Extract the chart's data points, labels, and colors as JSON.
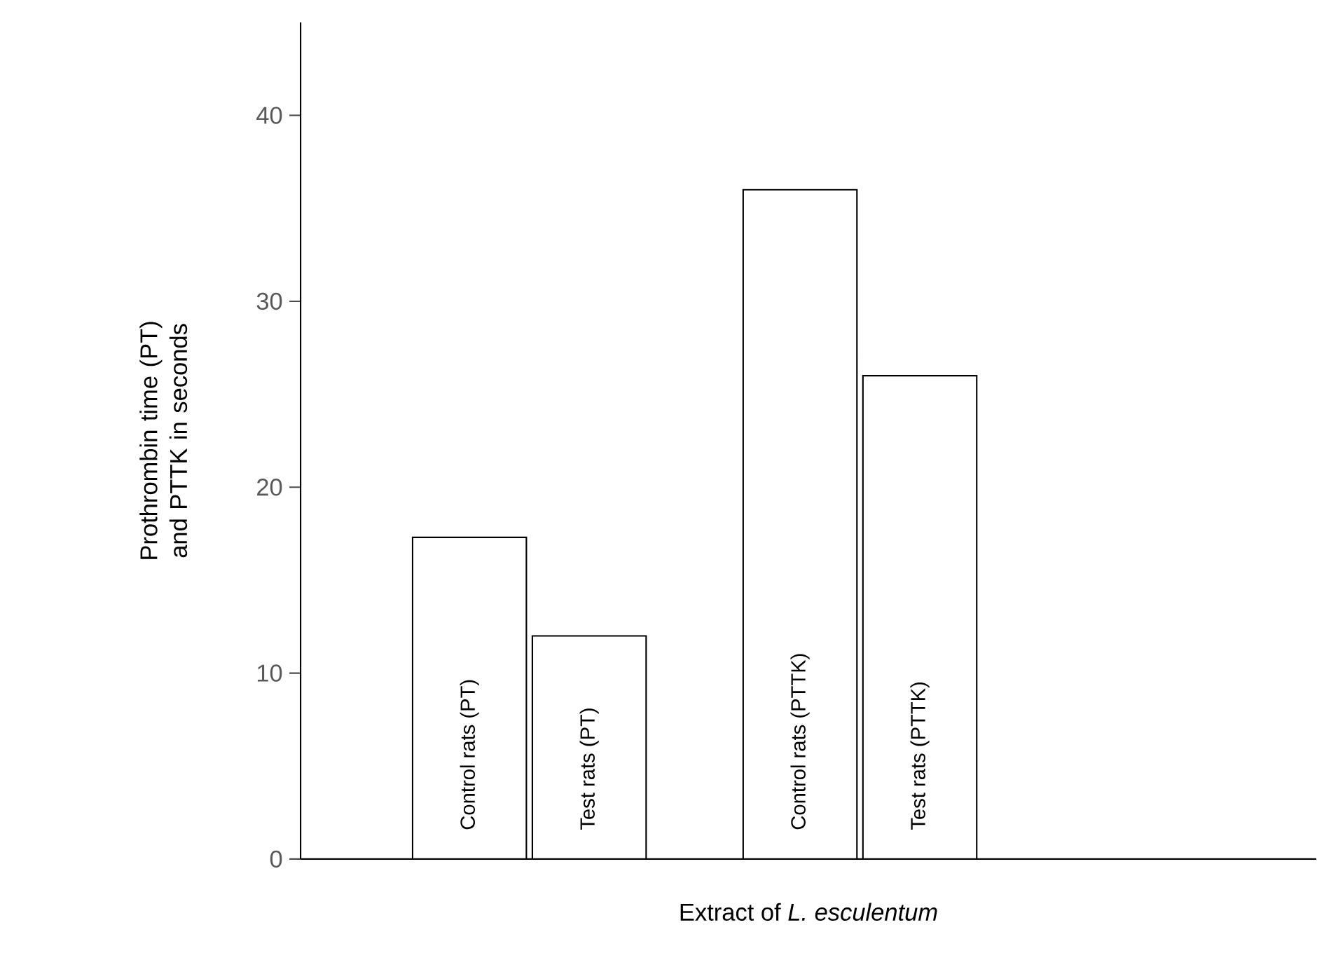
{
  "chart_data": {
    "type": "bar",
    "xlabel": "Extract of *L. esculentum*",
    "ylabel": "Prothrombin time (PT) and PTTK in seconds",
    "categories": [
      "Control rats (PT)",
      "Test rats (PT)",
      "Control rats (PTTK)",
      "Test rats (PTTK)"
    ],
    "values": [
      17.3,
      12,
      36,
      26
    ],
    "color": "#ffffff",
    "ylim": [
      0,
      45
    ],
    "yticks": [
      0,
      10,
      20,
      30,
      40
    ],
    "grid": false
  }
}
